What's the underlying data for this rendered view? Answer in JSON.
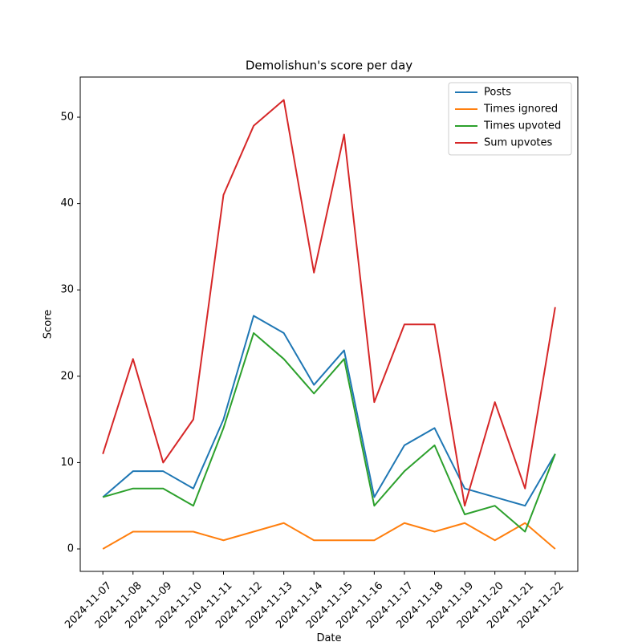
{
  "chart_data": {
    "type": "line",
    "title": "Demolishun's score per day",
    "x_label": "Date",
    "y_label": "Score",
    "categories": [
      "2024-11-07",
      "2024-11-08",
      "2024-11-09",
      "2024-11-10",
      "2024-11-11",
      "2024-11-12",
      "2024-11-13",
      "2024-11-14",
      "2024-11-15",
      "2024-11-16",
      "2024-11-17",
      "2024-11-18",
      "2024-11-19",
      "2024-11-20",
      "2024-11-21",
      "2024-11-22"
    ],
    "series": [
      {
        "name": "Posts",
        "color": "#1f77b4",
        "values": [
          6,
          9,
          9,
          7,
          15,
          27,
          25,
          19,
          23,
          6,
          12,
          14,
          7,
          6,
          5,
          11
        ]
      },
      {
        "name": "Times ignored",
        "color": "#ff7f0e",
        "values": [
          0,
          2,
          2,
          2,
          1,
          2,
          3,
          1,
          1,
          1,
          3,
          2,
          3,
          1,
          3,
          0
        ]
      },
      {
        "name": "Times upvoted",
        "color": "#2ca02c",
        "values": [
          6,
          7,
          7,
          5,
          14,
          25,
          22,
          18,
          22,
          5,
          9,
          12,
          4,
          5,
          2,
          11
        ]
      },
      {
        "name": "Sum upvotes",
        "color": "#d62728",
        "values": [
          11,
          22,
          10,
          15,
          41,
          49,
          52,
          32,
          48,
          17,
          26,
          26,
          5,
          17,
          7,
          28
        ]
      }
    ],
    "ylim": [
      -2.6,
      54.65
    ],
    "yticks": [
      0,
      10,
      20,
      30,
      40,
      50
    ],
    "legend": "upper right"
  }
}
